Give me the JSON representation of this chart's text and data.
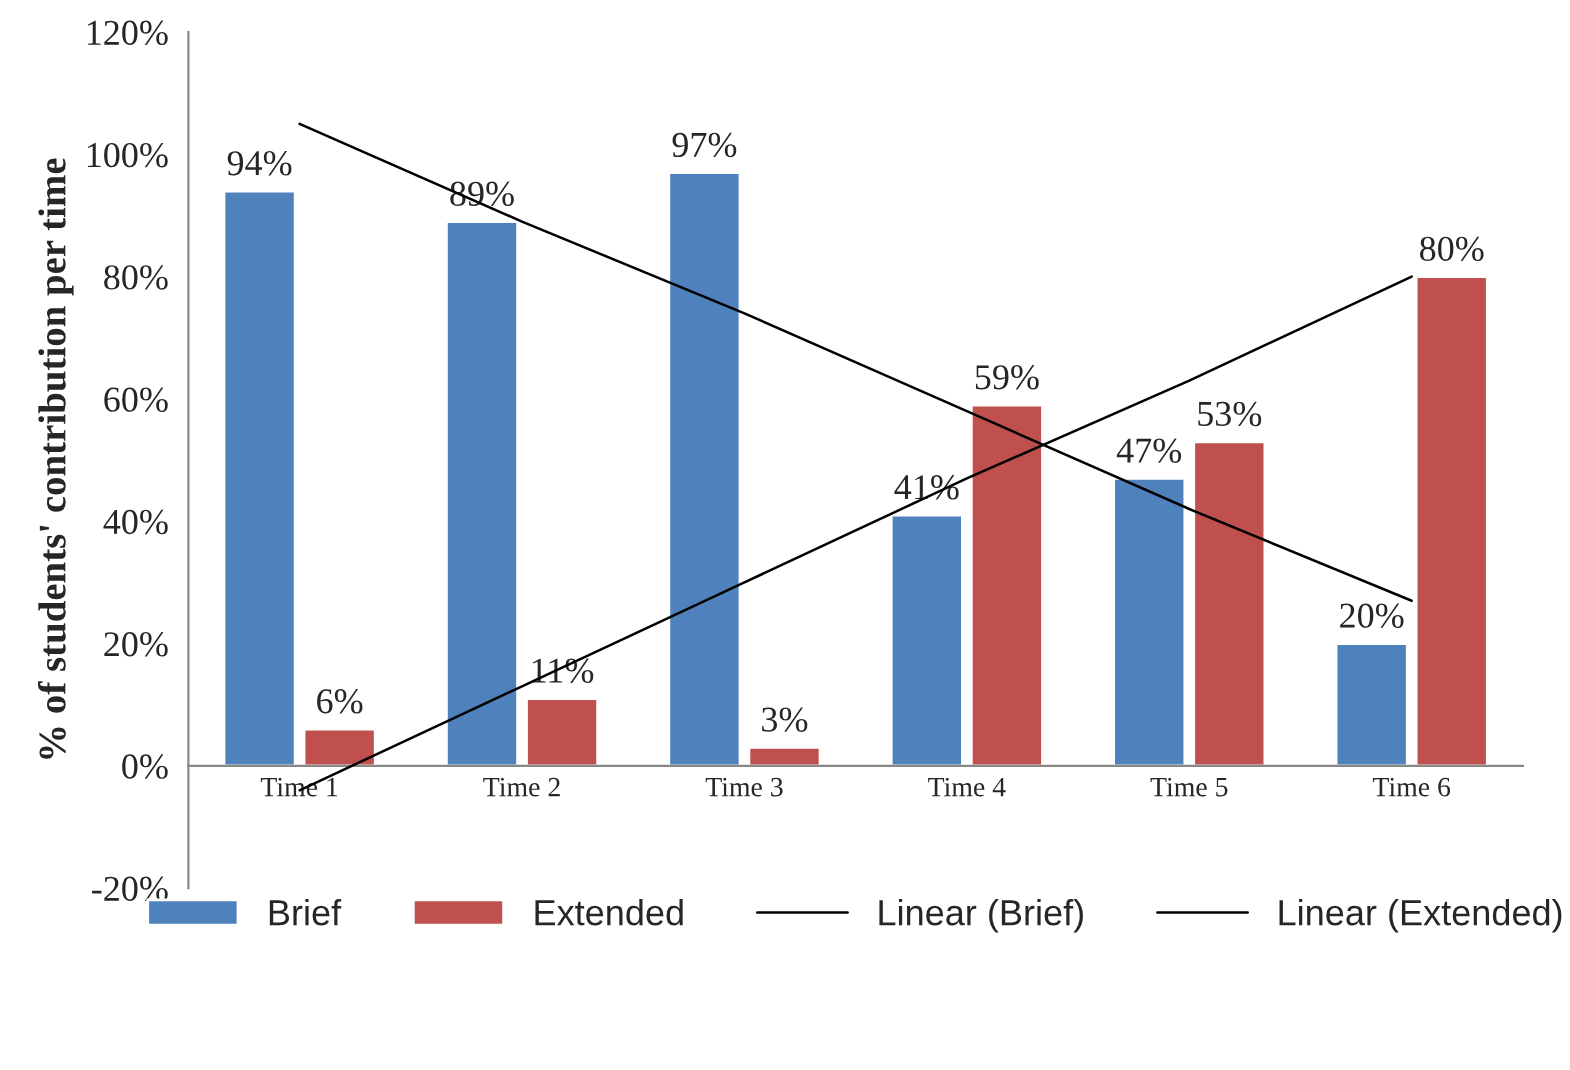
{
  "chart_data": {
    "type": "bar",
    "ylabel": "% of students' contribution per time",
    "categories": [
      "Time 1",
      "Time 2",
      "Time 3",
      "Time 4",
      "Time 5",
      "Time 6"
    ],
    "series": [
      {
        "name": "Brief",
        "color": "#4f81bd",
        "values": [
          94,
          89,
          97,
          41,
          47,
          20
        ],
        "value_labels": [
          "94%",
          "89%",
          "97%",
          "41%",
          "47%",
          "20%"
        ]
      },
      {
        "name": "Extended",
        "color": "#c0504d",
        "values": [
          6,
          11,
          3,
          59,
          53,
          80
        ],
        "value_labels": [
          "6%",
          "11%",
          "3%",
          "59%",
          "53%",
          "80%"
        ]
      },
      {
        "name": "Linear (Brief)",
        "type": "line",
        "color": "#000000",
        "values": [
          105,
          89,
          74,
          58,
          42,
          27
        ]
      },
      {
        "name": "Linear (Extended)",
        "type": "line",
        "color": "#000000",
        "values": [
          -4,
          13,
          30,
          47,
          63,
          80
        ]
      }
    ],
    "ylim": [
      -20,
      120
    ],
    "yticks": [
      {
        "value": -20,
        "label": "-20%"
      },
      {
        "value": 0,
        "label": "0%"
      },
      {
        "value": 20,
        "label": "20%"
      },
      {
        "value": 40,
        "label": "40%"
      },
      {
        "value": 60,
        "label": "60%"
      },
      {
        "value": 80,
        "label": "80%"
      },
      {
        "value": 100,
        "label": "100%"
      },
      {
        "value": 120,
        "label": "120%"
      }
    ],
    "grid": false,
    "legend": "bottom"
  }
}
